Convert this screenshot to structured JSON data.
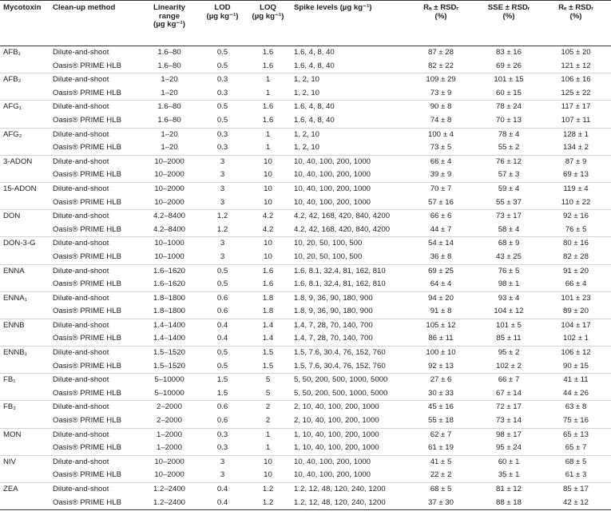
{
  "headers": {
    "mycotoxin": "Mycotoxin",
    "cleanup": "Clean-up method",
    "linearity": [
      "Linearity",
      "range",
      "(µg kg⁻¹)"
    ],
    "lod": [
      "LOD",
      "(µg kg⁻¹)"
    ],
    "loq": [
      "LOQ",
      "(µg kg⁻¹)"
    ],
    "spike": "Spike levels (µg kg⁻¹)",
    "ra": [
      "Rₐ ± RSDᵣ",
      "(%)"
    ],
    "sse": [
      "SSE ± RSDᵣ",
      "(%)"
    ],
    "re": [
      "Rₑ ± RSDᵣ",
      "(%)"
    ]
  },
  "methods": [
    "Dilute-and-shoot",
    "Oasis® PRIME HLB"
  ],
  "rows": [
    {
      "toxin": "AFB₁",
      "r": [
        {
          "lin": "1.6–80",
          "lod": "0.5",
          "loq": "1.6",
          "spike": "1.6, 4, 8, 40",
          "ra": "87 ± 28",
          "sse": "83 ± 16",
          "re": "105 ± 20"
        },
        {
          "lin": "1.6–80",
          "lod": "0.5",
          "loq": "1.6",
          "spike": "1.6, 4, 8, 40",
          "ra": "82 ± 22",
          "sse": "69 ± 26",
          "re": "121 ± 12"
        }
      ]
    },
    {
      "toxin": "AFB₂",
      "r": [
        {
          "lin": "1–20",
          "lod": "0.3",
          "loq": "1",
          "spike": "1, 2, 10",
          "ra": "109 ± 29",
          "sse": "101 ± 15",
          "re": "106 ± 16"
        },
        {
          "lin": "1–20",
          "lod": "0.3",
          "loq": "1",
          "spike": "1, 2, 10",
          "ra": "73 ± 9",
          "sse": "60 ± 15",
          "re": "125 ± 22"
        }
      ]
    },
    {
      "toxin": "AFG₁",
      "r": [
        {
          "lin": "1.6–80",
          "lod": "0.5",
          "loq": "1.6",
          "spike": "1.6, 4, 8, 40",
          "ra": "90 ± 8",
          "sse": "78 ± 24",
          "re": "117 ± 17"
        },
        {
          "lin": "1.6–80",
          "lod": "0.5",
          "loq": "1.6",
          "spike": "1.6, 4, 8, 40",
          "ra": "74 ± 8",
          "sse": "70 ± 13",
          "re": "107 ± 11"
        }
      ]
    },
    {
      "toxin": "AFG₂",
      "r": [
        {
          "lin": "1–20",
          "lod": "0.3",
          "loq": "1",
          "spike": "1, 2, 10",
          "ra": "100 ± 4",
          "sse": "78 ± 4",
          "re": "128 ± 1"
        },
        {
          "lin": "1–20",
          "lod": "0.3",
          "loq": "1",
          "spike": "1, 2, 10",
          "ra": "73 ± 5",
          "sse": "55 ± 2",
          "re": "134 ± 2"
        }
      ]
    },
    {
      "toxin": "3-ADON",
      "r": [
        {
          "lin": "10–2000",
          "lod": "3",
          "loq": "10",
          "spike": "10, 40, 100, 200, 1000",
          "ra": "66 ± 4",
          "sse": "76 ± 12",
          "re": "87 ± 9"
        },
        {
          "lin": "10–2000",
          "lod": "3",
          "loq": "10",
          "spike": "10, 40, 100, 200, 1000",
          "ra": "39 ± 9",
          "sse": "57 ± 3",
          "re": "69 ± 13"
        }
      ]
    },
    {
      "toxin": "15-ADON",
      "r": [
        {
          "lin": "10–2000",
          "lod": "3",
          "loq": "10",
          "spike": "10, 40, 100, 200, 1000",
          "ra": "70 ± 7",
          "sse": "59 ± 4",
          "re": "119 ± 4"
        },
        {
          "lin": "10–2000",
          "lod": "3",
          "loq": "10",
          "spike": "10, 40, 100, 200, 1000",
          "ra": "57 ± 16",
          "sse": "55 ± 37",
          "re": "110 ± 22"
        }
      ]
    },
    {
      "toxin": "DON",
      "r": [
        {
          "lin": "4.2–8400",
          "lod": "1.2",
          "loq": "4.2",
          "spike": "4.2, 42, 168, 420, 840, 4200",
          "ra": "66 ± 6",
          "sse": "73 ± 17",
          "re": "92 ± 16"
        },
        {
          "lin": "4.2–8400",
          "lod": "1.2",
          "loq": "4.2",
          "spike": "4.2, 42, 168, 420, 840, 4200",
          "ra": "44 ± 7",
          "sse": "58 ± 4",
          "re": "76 ± 5"
        }
      ]
    },
    {
      "toxin": "DON-3-G",
      "r": [
        {
          "lin": "10–1000",
          "lod": "3",
          "loq": "10",
          "spike": "10, 20, 50, 100, 500",
          "ra": "54 ± 14",
          "sse": "68 ± 9",
          "re": "80 ± 16"
        },
        {
          "lin": "10–1000",
          "lod": "3",
          "loq": "10",
          "spike": "10, 20, 50, 100, 500",
          "ra": "36 ± 8",
          "sse": "43 ± 25",
          "re": "82 ± 28"
        }
      ]
    },
    {
      "toxin": "ENNA",
      "r": [
        {
          "lin": "1.6–1620",
          "lod": "0.5",
          "loq": "1.6",
          "spike": "1.6, 8.1, 32.4, 81, 162, 810",
          "ra": "69 ± 25",
          "sse": "76 ± 5",
          "re": "91 ± 20"
        },
        {
          "lin": "1.6–1620",
          "lod": "0.5",
          "loq": "1.6",
          "spike": "1.6, 8.1, 32.4, 81, 162, 810",
          "ra": "64 ± 4",
          "sse": "98 ± 1",
          "re": "66 ± 4"
        }
      ]
    },
    {
      "toxin": "ENNA₁",
      "r": [
        {
          "lin": "1.8–1800",
          "lod": "0.6",
          "loq": "1.8",
          "spike": "1.8, 9, 36, 90, 180, 900",
          "ra": "94 ± 20",
          "sse": "93 ± 4",
          "re": "101 ± 23"
        },
        {
          "lin": "1.8–1800",
          "lod": "0.6",
          "loq": "1.8",
          "spike": "1.8, 9, 36, 90, 180, 900",
          "ra": "91 ± 8",
          "sse": "104 ± 12",
          "re": "89 ± 20"
        }
      ]
    },
    {
      "toxin": "ENNB",
      "r": [
        {
          "lin": "1.4–1400",
          "lod": "0.4",
          "loq": "1.4",
          "spike": "1.4, 7, 28, 70, 140, 700",
          "ra": "105 ± 12",
          "sse": "101 ± 5",
          "re": "104 ± 17"
        },
        {
          "lin": "1.4–1400",
          "lod": "0.4",
          "loq": "1.4",
          "spike": "1.4, 7, 28, 70, 140, 700",
          "ra": "86 ± 11",
          "sse": "85 ± 11",
          "re": "102 ± 1"
        }
      ]
    },
    {
      "toxin": "ENNB₁",
      "r": [
        {
          "lin": "1.5–1520",
          "lod": "0.5",
          "loq": "1.5",
          "spike": "1.5, 7.6, 30.4, 76, 152, 760",
          "ra": "100 ± 10",
          "sse": "95 ± 2",
          "re": "106 ± 12"
        },
        {
          "lin": "1.5–1520",
          "lod": "0.5",
          "loq": "1.5",
          "spike": "1.5, 7.6, 30.4, 76, 152, 760",
          "ra": "92 ± 13",
          "sse": "102 ± 2",
          "re": "90 ± 15"
        }
      ]
    },
    {
      "toxin": "FB₁",
      "r": [
        {
          "lin": "5–10000",
          "lod": "1.5",
          "loq": "5",
          "spike": "5, 50, 200, 500, 1000, 5000",
          "ra": "27 ± 6",
          "sse": "66 ± 7",
          "re": "41 ± 11"
        },
        {
          "lin": "5–10000",
          "lod": "1.5",
          "loq": "5",
          "spike": "5, 50, 200, 500, 1000, 5000",
          "ra": "30 ± 33",
          "sse": "67 ± 14",
          "re": "44 ± 26"
        }
      ]
    },
    {
      "toxin": "FB₂",
      "r": [
        {
          "lin": "2–2000",
          "lod": "0.6",
          "loq": "2",
          "spike": "2, 10, 40, 100, 200, 1000",
          "ra": "45 ± 16",
          "sse": "72 ± 17",
          "re": "63 ± 8"
        },
        {
          "lin": "2–2000",
          "lod": "0.6",
          "loq": "2",
          "spike": "2, 10, 40, 100, 200, 1000",
          "ra": "55 ± 18",
          "sse": "73 ± 14",
          "re": "75 ± 16"
        }
      ]
    },
    {
      "toxin": "MON",
      "r": [
        {
          "lin": "1–2000",
          "lod": "0.3",
          "loq": "1",
          "spike": "1, 10, 40, 100, 200, 1000",
          "ra": "62 ± 7",
          "sse": "98 ± 17",
          "re": "65 ± 13"
        },
        {
          "lin": "1–2000",
          "lod": "0.3",
          "loq": "1",
          "spike": "1, 10, 40, 100, 200, 1000",
          "ra": "61 ± 19",
          "sse": "95 ± 24",
          "re": "65 ± 7"
        }
      ]
    },
    {
      "toxin": "NIV",
      "r": [
        {
          "lin": "10–2000",
          "lod": "3",
          "loq": "10",
          "spike": "10, 40, 100, 200, 1000",
          "ra": "41 ± 5",
          "sse": "60 ± 1",
          "re": "68 ± 5"
        },
        {
          "lin": "10–2000",
          "lod": "3",
          "loq": "10",
          "spike": "10, 40, 100, 200, 1000",
          "ra": "22 ± 2",
          "sse": "35 ± 1",
          "re": "61 ± 3"
        }
      ]
    },
    {
      "toxin": "ZEA",
      "r": [
        {
          "lin": "1.2–2400",
          "lod": "0.4",
          "loq": "1.2",
          "spike": "1.2, 12, 48, 120, 240, 1200",
          "ra": "68 ± 5",
          "sse": "81 ± 12",
          "re": "85 ± 17"
        },
        {
          "lin": "1.2–2400",
          "lod": "0.4",
          "loq": "1.2",
          "spike": "1.2, 12, 48, 120, 240, 1200",
          "ra": "37 ± 30",
          "sse": "88 ± 18",
          "re": "42 ± 12"
        }
      ]
    }
  ]
}
